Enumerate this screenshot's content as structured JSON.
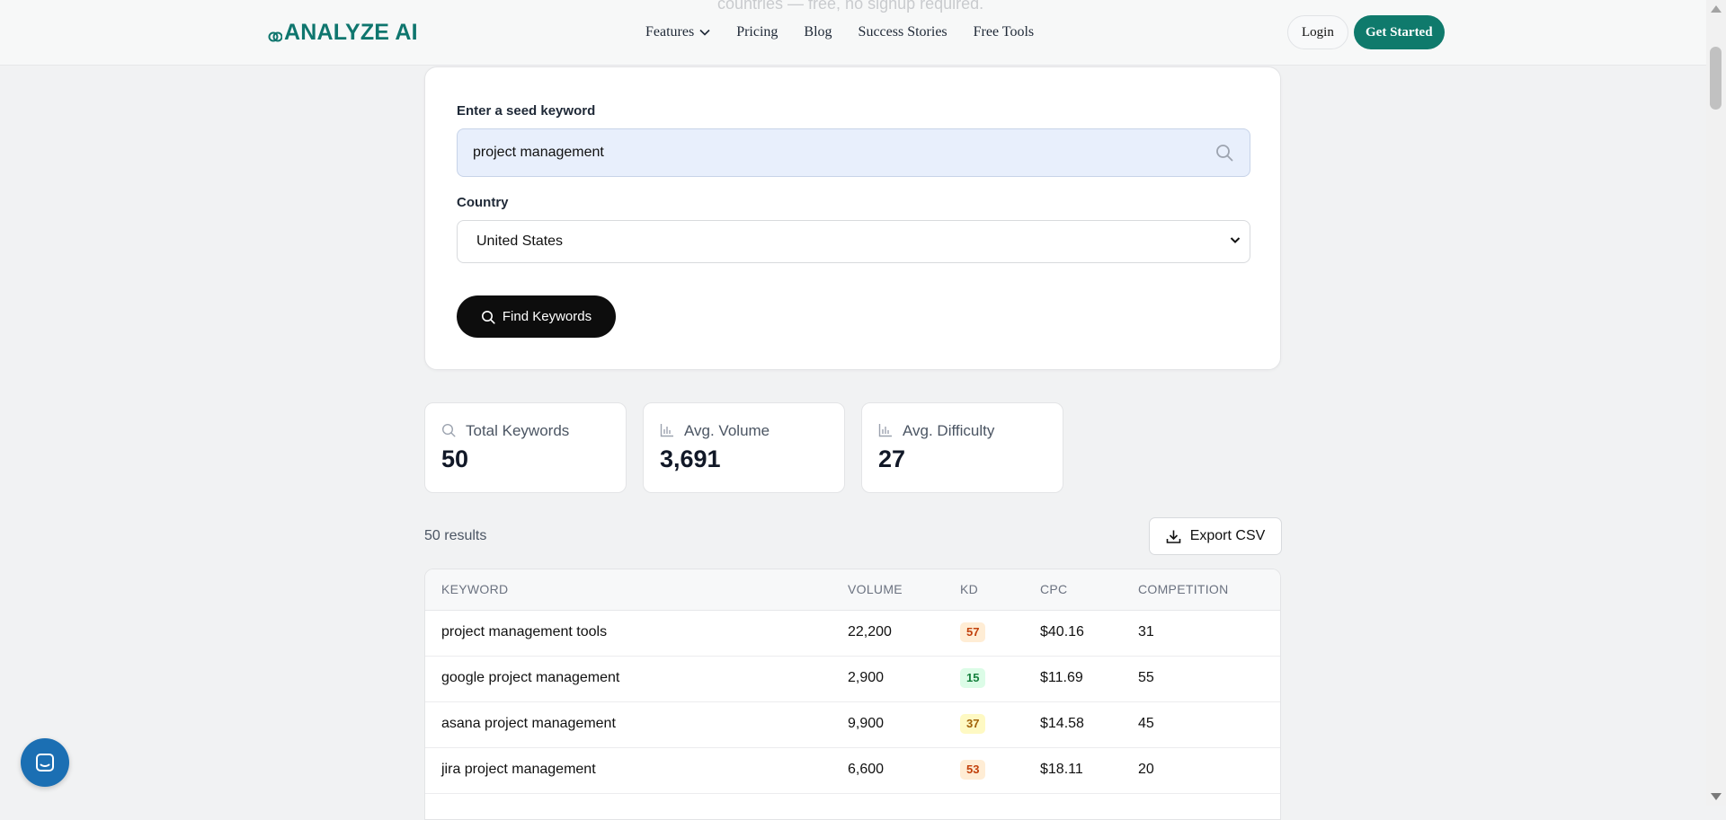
{
  "header": {
    "behind_text": "countries — free, no signup required.",
    "logo": "ANALYZE AI",
    "nav": [
      "Features",
      "Pricing",
      "Blog",
      "Success Stories",
      "Free Tools"
    ],
    "login": "Login",
    "get_started": "Get Started"
  },
  "form": {
    "seed_label": "Enter a seed keyword",
    "seed_value": "project management",
    "country_label": "Country",
    "country_value": "United States",
    "find_button": "Find Keywords"
  },
  "stats": [
    {
      "label": "Total Keywords",
      "value": "50",
      "icon": "search-icon"
    },
    {
      "label": "Avg. Volume",
      "value": "3,691",
      "icon": "bar-chart-icon"
    },
    {
      "label": "Avg. Difficulty",
      "value": "27",
      "icon": "bar-chart-icon"
    }
  ],
  "results": {
    "count_text": "50 results",
    "export_label": "Export CSV"
  },
  "table": {
    "headers": [
      "KEYWORD",
      "VOLUME",
      "KD",
      "CPC",
      "COMPETITION"
    ],
    "rows": [
      {
        "keyword": "project management tools",
        "volume": "22,200",
        "kd": "57",
        "cpc": "$40.16",
        "competition": "31"
      },
      {
        "keyword": "google project management",
        "volume": "2,900",
        "kd": "15",
        "cpc": "$11.69",
        "competition": "55"
      },
      {
        "keyword": "asana project management",
        "volume": "9,900",
        "kd": "37",
        "cpc": "$14.58",
        "competition": "45"
      },
      {
        "keyword": "jira project management",
        "volume": "6,600",
        "kd": "53",
        "cpc": "$18.11",
        "competition": "20"
      }
    ]
  },
  "colors": {
    "brand": "#0f7a6c",
    "kd_hard": "#c2410c",
    "kd_easy": "#15803d",
    "kd_medium": "#a16207",
    "chat": "#1b6fb3"
  }
}
